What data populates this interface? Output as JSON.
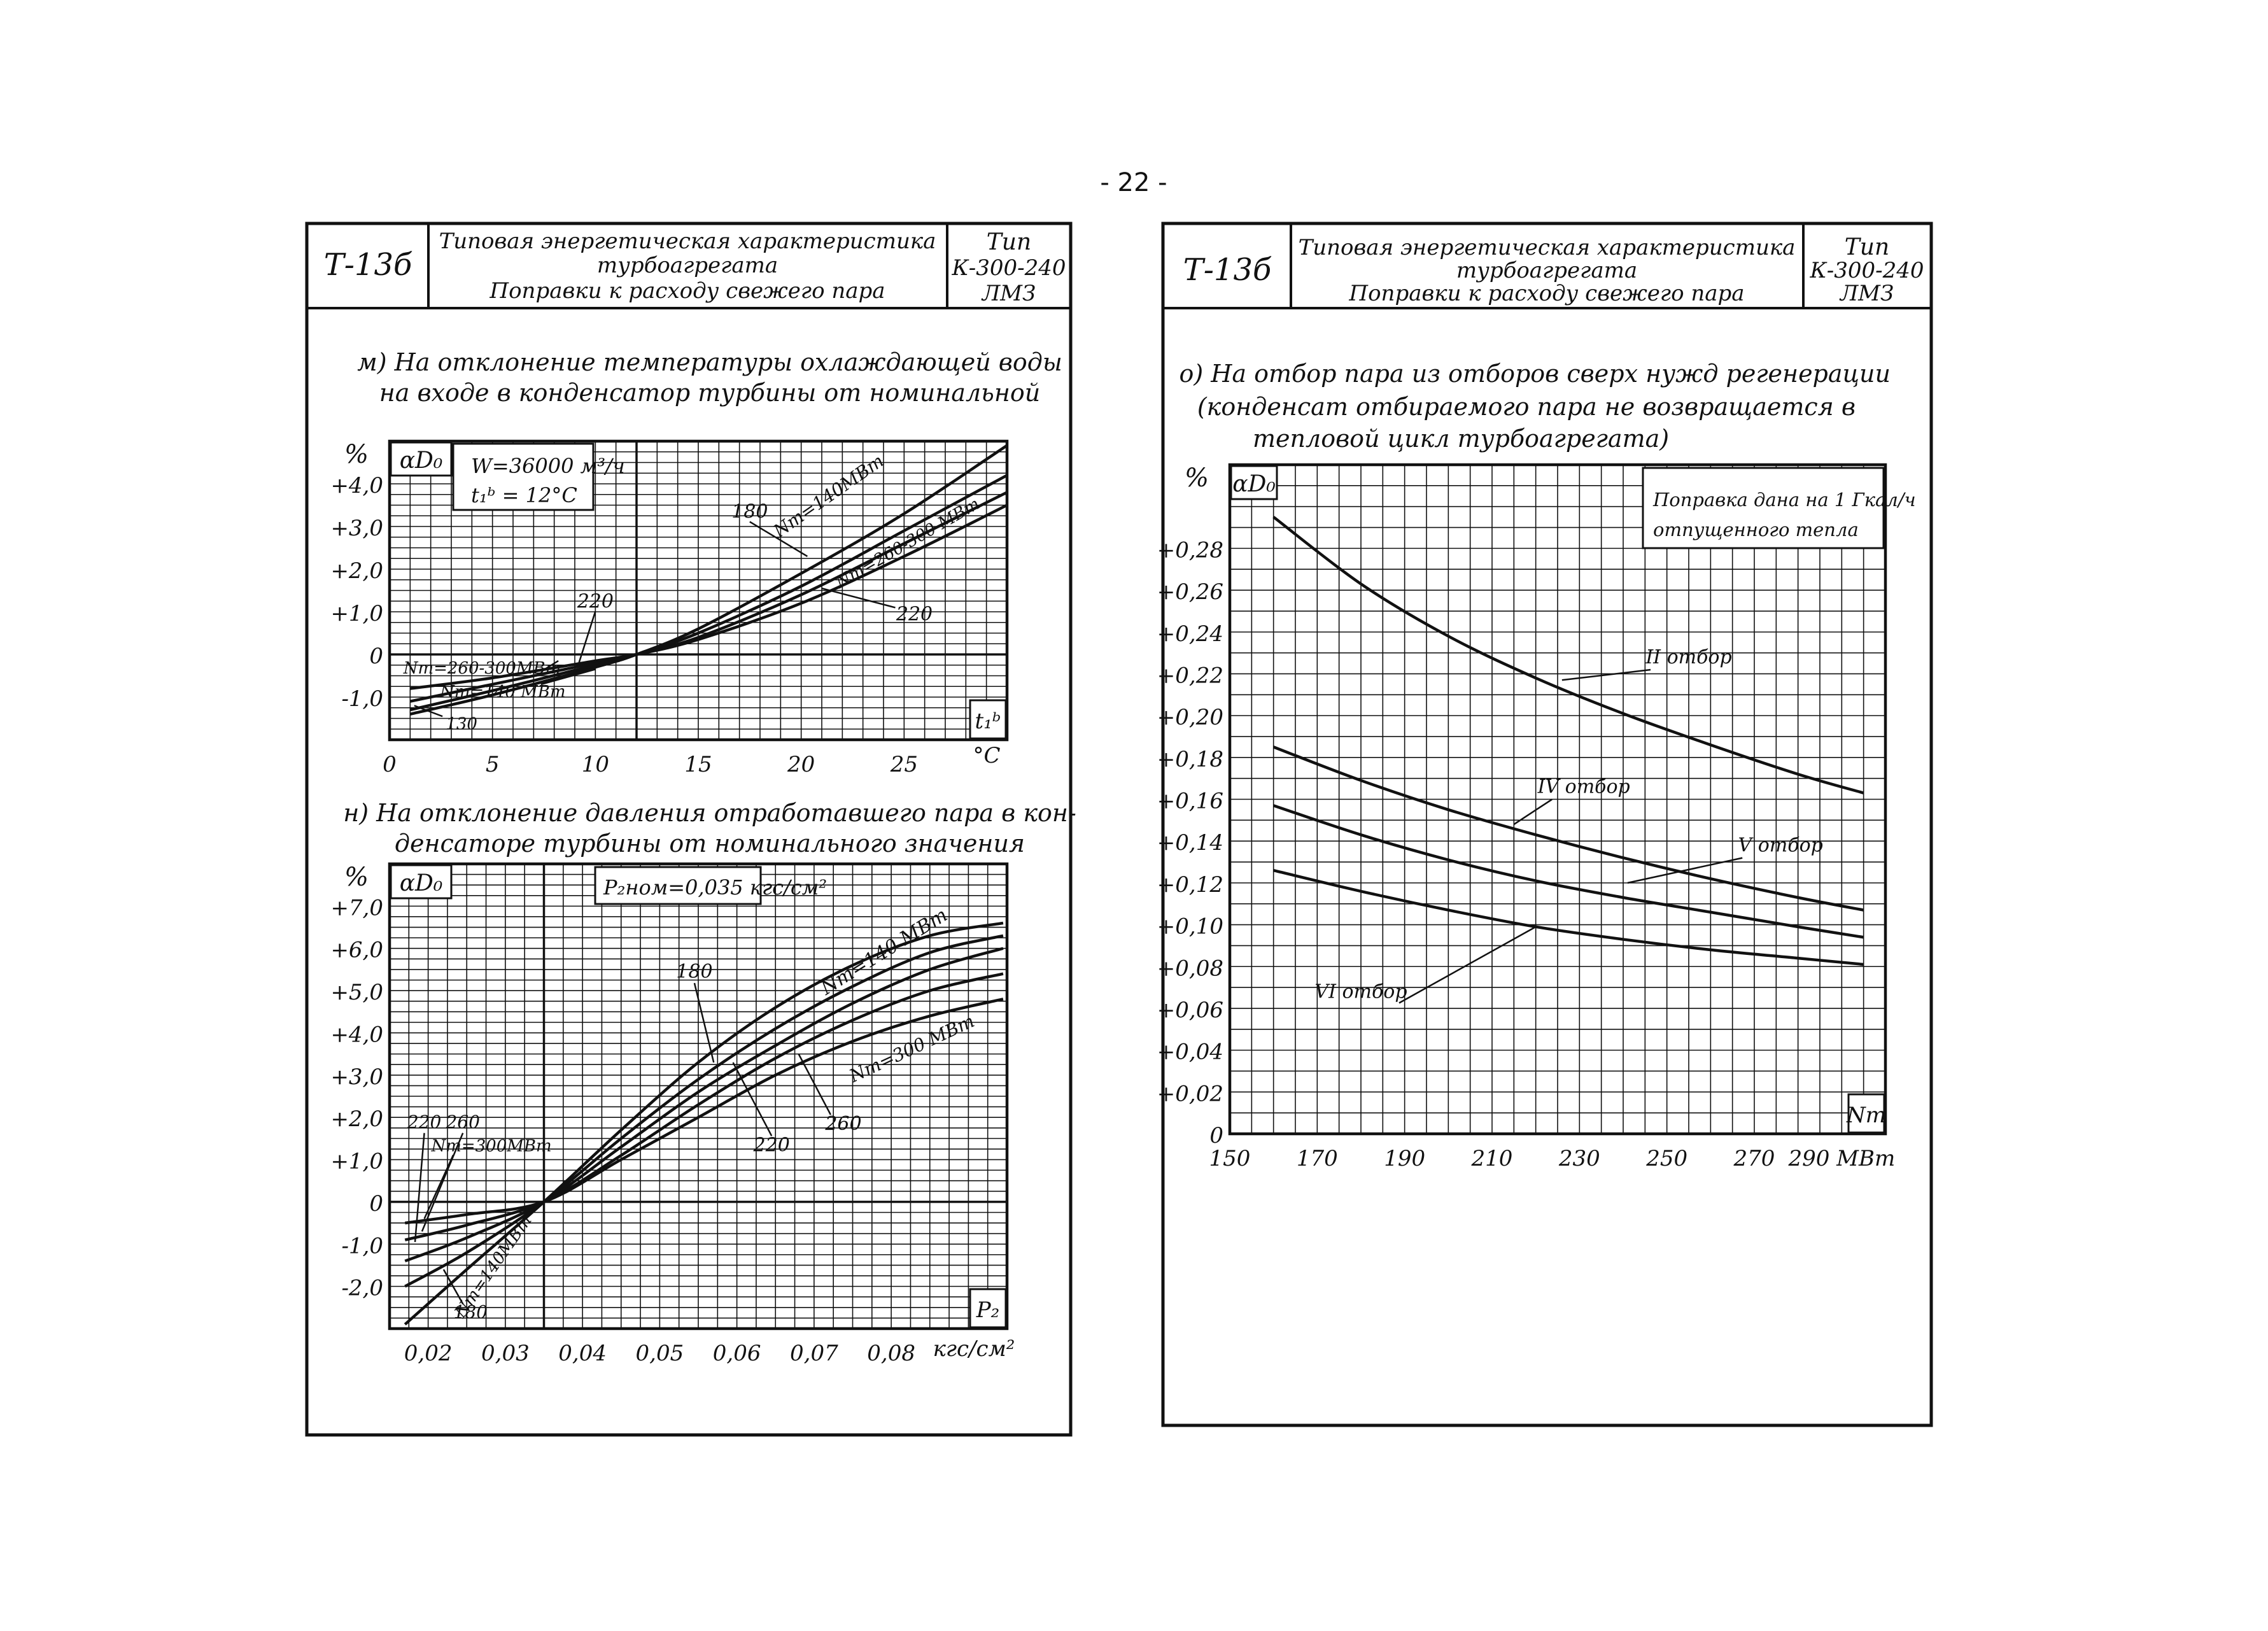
{
  "page_number": "- 22 -",
  "left_sheet": {
    "code": "Т-13б",
    "title_line1": "Типовая энергетическая характеристика",
    "title_line2": "турбоагрегата",
    "title_line3": "Поправки к расходу свежего пара",
    "type_line1": "Тип",
    "type_line2": "К-300-240",
    "type_line3": "ЛМЗ"
  },
  "right_sheet": {
    "code": "Т-13б",
    "title_line1": "Типовая энергетическая характеристика",
    "title_line2": "турбоагрегата",
    "title_line3": "Поправки к расходу свежего пара",
    "type_line1": "Тип",
    "type_line2": "К-300-240",
    "type_line3": "ЛМЗ"
  },
  "colors": {
    "ink": "#111111",
    "paper": "#ffffff"
  },
  "chart_data": [
    {
      "id": "m",
      "type": "line",
      "title_line1": "м) На отклонение температуры охлаждающей воды",
      "title_line2": "на входе в конденсатор турбины от номинальной",
      "ylabel": "%",
      "ylabel2": "αD₀",
      "xlabel": "t₁ᵇ",
      "x_unit": "°C",
      "note_line1": "W=36000 м³/ч",
      "note_line2": "t₁ᵇ = 12°C",
      "xlim": [
        0,
        30
      ],
      "ylim": [
        -2.0,
        5.0
      ],
      "x_ticks": [
        "0",
        "5",
        "10",
        "15",
        "20",
        "25"
      ],
      "y_ticks": [
        "+4,0",
        "+3,0",
        "+2,0",
        "+1,0",
        "0",
        "-1,0"
      ],
      "grid": true,
      "series": [
        {
          "name": "Nт=140 МВт",
          "x": [
            1,
            5,
            10,
            12,
            15,
            20,
            25,
            30
          ],
          "y": [
            -1.4,
            -0.95,
            -0.3,
            0,
            0.6,
            1.9,
            3.3,
            4.9
          ]
        },
        {
          "name": "180",
          "x": [
            1,
            5,
            10,
            12,
            15,
            20,
            25,
            30
          ],
          "y": [
            -1.3,
            -0.85,
            -0.25,
            0,
            0.5,
            1.6,
            2.9,
            4.2
          ]
        },
        {
          "name": "220",
          "x": [
            1,
            5,
            10,
            12,
            15,
            20,
            25,
            30
          ],
          "y": [
            -1.1,
            -0.7,
            -0.2,
            0,
            0.4,
            1.4,
            2.6,
            3.8
          ]
        },
        {
          "name": "Nт=260-300 МВт",
          "x": [
            1,
            5,
            10,
            12,
            15,
            20,
            25,
            30
          ],
          "y": [
            -0.8,
            -0.55,
            -0.15,
            0,
            0.35,
            1.2,
            2.3,
            3.5
          ]
        }
      ],
      "annotations": [
        "Nт=140МВт",
        "180",
        "220",
        "Nт=260-300 МВт",
        "Nт=260-300МВт",
        "Nт=140 МВт",
        "130",
        "220"
      ]
    },
    {
      "id": "n",
      "type": "line",
      "title_line1": "н) На отклонение давления отработавшего пара в кон-",
      "title_line2": "денсаторе турбины от номинального значения",
      "ylabel": "%",
      "ylabel2": "αD₀",
      "xlabel": "P₂",
      "x_unit": "кгс/см²",
      "note": "P₂ном=0,035 кгс/см²",
      "xlim": [
        0.015,
        0.095
      ],
      "ylim": [
        -3.0,
        8.0
      ],
      "x_ticks": [
        "0,02",
        "0,03",
        "0,04",
        "0,05",
        "0,06",
        "0,07",
        "0,08"
      ],
      "y_ticks": [
        "+7,0",
        "+6,0",
        "+5,0",
        "+4,0",
        "+3,0",
        "+2,0",
        "+1,0",
        "0",
        "-1,0",
        "-2,0"
      ],
      "grid": true,
      "series": [
        {
          "name": "Nт=140 МВт",
          "x": [
            0.017,
            0.025,
            0.035,
            0.045,
            0.055,
            0.065,
            0.075,
            0.085,
            0.0945
          ],
          "y": [
            -2.9,
            -1.6,
            0,
            1.7,
            3.3,
            4.6,
            5.6,
            6.3,
            6.6
          ]
        },
        {
          "name": "180",
          "x": [
            0.017,
            0.025,
            0.035,
            0.045,
            0.055,
            0.065,
            0.075,
            0.085,
            0.0945
          ],
          "y": [
            -2.0,
            -1.2,
            0,
            1.5,
            2.9,
            4.1,
            5.1,
            5.9,
            6.3
          ]
        },
        {
          "name": "220",
          "x": [
            0.017,
            0.025,
            0.035,
            0.045,
            0.055,
            0.065,
            0.075,
            0.085,
            0.0945
          ],
          "y": [
            -1.4,
            -0.85,
            0,
            1.3,
            2.6,
            3.7,
            4.7,
            5.5,
            6.0
          ]
        },
        {
          "name": "260",
          "x": [
            0.017,
            0.025,
            0.035,
            0.045,
            0.055,
            0.065,
            0.075,
            0.085,
            0.0945
          ],
          "y": [
            -0.9,
            -0.55,
            0,
            1.1,
            2.3,
            3.4,
            4.3,
            5.0,
            5.4
          ]
        },
        {
          "name": "Nт=300 МВт",
          "x": [
            0.017,
            0.025,
            0.035,
            0.045,
            0.055,
            0.065,
            0.075,
            0.085,
            0.0945
          ],
          "y": [
            -0.5,
            -0.3,
            0,
            1.0,
            2.0,
            3.0,
            3.8,
            4.4,
            4.8
          ]
        }
      ],
      "annotations": [
        "Nт=140 МВт",
        "180",
        "Nт=300 МВт",
        "260",
        "220",
        "220",
        "260",
        "Nт=300МВт",
        "Nт=140МВт",
        "180"
      ]
    },
    {
      "id": "o",
      "type": "line",
      "title_line1": "о) На отбор пара из отборов сверх нужд регенерации",
      "title_line2": "(конденсат отбираемого пара не возвращается в",
      "title_line3": "тепловой цикл турбоагрегата)",
      "ylabel": "%",
      "ylabel2": "αD₀",
      "xlabel": "Nт",
      "x_unit": "МВт",
      "note_line1": "Поправка дана на 1 Гкал/ч",
      "note_line2": "отпущенного тепла",
      "xlim": [
        150,
        300
      ],
      "ylim": [
        0,
        0.32
      ],
      "x_ticks": [
        "150",
        "170",
        "190",
        "210",
        "230",
        "250",
        "270",
        "290 МВт"
      ],
      "y_ticks": [
        "+0,28",
        "+0,26",
        "+0,24",
        "+0,22",
        "+0,20",
        "+0,18",
        "+0,16",
        "+0,14",
        "+0,12",
        "+0,10",
        "+0,08",
        "+0,06",
        "+0,04",
        "+0,02",
        "0"
      ],
      "grid": true,
      "series": [
        {
          "name": "II отбор",
          "x": [
            160,
            180,
            200,
            220,
            240,
            260,
            280,
            295
          ],
          "y": [
            0.295,
            0.263,
            0.238,
            0.218,
            0.201,
            0.186,
            0.172,
            0.163
          ]
        },
        {
          "name": "IV отбор",
          "x": [
            160,
            180,
            200,
            220,
            240,
            260,
            280,
            295
          ],
          "y": [
            0.185,
            0.169,
            0.155,
            0.143,
            0.132,
            0.122,
            0.113,
            0.107
          ]
        },
        {
          "name": "V отбор",
          "x": [
            160,
            180,
            200,
            220,
            240,
            260,
            280,
            295
          ],
          "y": [
            0.157,
            0.143,
            0.131,
            0.121,
            0.113,
            0.106,
            0.099,
            0.094
          ]
        },
        {
          "name": "VI отбор",
          "x": [
            160,
            180,
            200,
            220,
            240,
            260,
            280,
            295
          ],
          "y": [
            0.126,
            0.116,
            0.107,
            0.099,
            0.093,
            0.088,
            0.084,
            0.081
          ]
        }
      ],
      "annotations": [
        "II отбор",
        "IV отбор",
        "V отбор",
        "VI отбор"
      ]
    }
  ]
}
